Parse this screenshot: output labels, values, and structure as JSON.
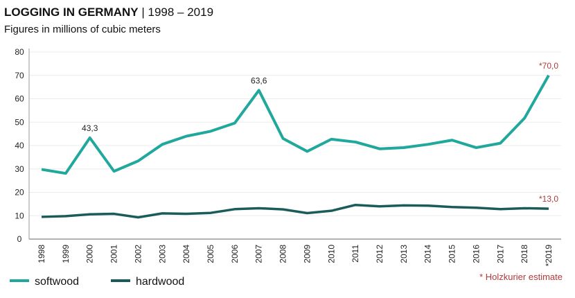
{
  "chart_data": {
    "type": "line",
    "title_bold": "LOGGING IN GERMANY",
    "title_rest": " | 1998 – 2019",
    "subtitle": "Figures in millions of cubic meters",
    "x": [
      "1998",
      "1999",
      "2000",
      "2001",
      "2002",
      "2003",
      "2004",
      "2005",
      "2006",
      "2007",
      "2008",
      "2009",
      "2010",
      "2011",
      "2012",
      "2013",
      "2014",
      "2015",
      "2016",
      "2017",
      "2018",
      "*2019"
    ],
    "ylim": [
      0,
      80
    ],
    "yticks": [
      0,
      10,
      20,
      30,
      40,
      50,
      60,
      70,
      80
    ],
    "grid": true,
    "legend_placement": "bottom-left",
    "series": [
      {
        "name": "softwood",
        "color": "#20a89c",
        "values": [
          29.8,
          28.1,
          43.3,
          29.0,
          33.4,
          40.5,
          44.0,
          46.1,
          49.6,
          63.6,
          43.0,
          37.5,
          42.7,
          41.5,
          38.6,
          39.1,
          40.5,
          42.3,
          39.1,
          41.0,
          51.7,
          70.0
        ]
      },
      {
        "name": "hardwood",
        "color": "#1a5c5a",
        "values": [
          9.5,
          9.8,
          10.6,
          10.8,
          9.3,
          11.0,
          10.8,
          11.2,
          12.8,
          13.2,
          12.7,
          11.1,
          12.1,
          14.6,
          14.0,
          14.4,
          14.3,
          13.7,
          13.4,
          12.8,
          13.2,
          13.0
        ]
      }
    ],
    "annotations": [
      {
        "series": 0,
        "index": 2,
        "text": "43,3",
        "color": "#222"
      },
      {
        "series": 0,
        "index": 9,
        "text": "63,6",
        "color": "#222"
      },
      {
        "series": 0,
        "index": 21,
        "text": "*70,0",
        "color": "#b03a3a"
      },
      {
        "series": 1,
        "index": 21,
        "text": "*13,0",
        "color": "#b03a3a"
      }
    ],
    "estimate_color": "#b03a3a",
    "footnote": "* Holzkurier estimate"
  }
}
